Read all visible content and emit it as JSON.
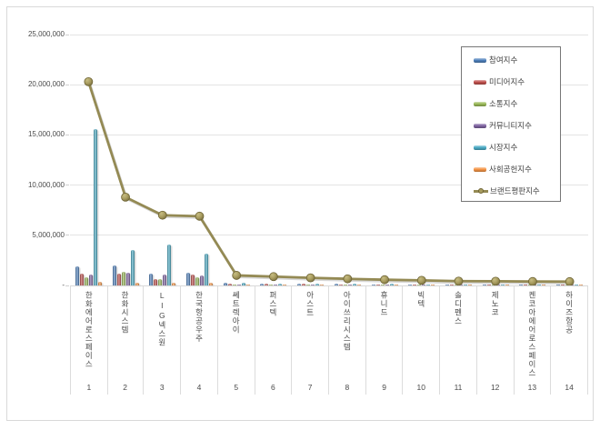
{
  "accent_colors": {
    "grid": "#e3e3e3",
    "frame_border": "#d9d9d9",
    "legend_border": "#777777",
    "text": "#4a4a4a"
  },
  "chart_data": {
    "type": "bar",
    "note_combo": "six 3D cylinder bar series plus one olive line series with circular markers",
    "title": "",
    "xlabel": "",
    "ylabel": "",
    "ylim": [
      0,
      25000000
    ],
    "y_step": 5000000,
    "grid": true,
    "legend_position": "top-right box",
    "y_ticks": [
      "25,000,000",
      "20,000,000",
      "15,000,000",
      "10,000,000",
      "5,000,000",
      "-"
    ],
    "categories": [
      "한화에어로스페이스",
      "한화시스템",
      "LIG넥스원",
      "한국항공우주",
      "쎄트렉아이",
      "퍼스텍",
      "아스트",
      "아이쓰리시스템",
      "휴니드",
      "빅텍",
      "솔디펜스",
      "제노코",
      "켄코아에어로스페이스",
      "하이즈항공"
    ],
    "category_numbers": [
      "1",
      "2",
      "3",
      "4",
      "5",
      "6",
      "7",
      "8",
      "9",
      "10",
      "11",
      "12",
      "13",
      "14"
    ],
    "series": [
      {
        "name": "참여지수",
        "type": "bar",
        "color": "#4F81BD",
        "values": [
          1900000,
          2000000,
          1150000,
          1300000,
          280000,
          200000,
          160000,
          180000,
          120000,
          110000,
          90000,
          100000,
          90000,
          90000
        ]
      },
      {
        "name": "미디어지수",
        "type": "bar",
        "color": "#C0504D",
        "values": [
          1200000,
          1200000,
          650000,
          1080000,
          160000,
          180000,
          160000,
          120000,
          130000,
          110000,
          90000,
          90000,
          80000,
          80000
        ]
      },
      {
        "name": "소통지수",
        "type": "bar",
        "color": "#9BBB59",
        "values": [
          820000,
          1380000,
          630000,
          810000,
          120000,
          130000,
          110000,
          90000,
          80000,
          70000,
          60000,
          70000,
          60000,
          60000
        ]
      },
      {
        "name": "커뮤니티지수",
        "type": "bar",
        "color": "#8064A2",
        "values": [
          1050000,
          1230000,
          1050000,
          1020000,
          130000,
          120000,
          100000,
          90000,
          70000,
          60000,
          50000,
          50000,
          50000,
          50000
        ]
      },
      {
        "name": "시장지수",
        "type": "bar",
        "color": "#4BACC6",
        "values": [
          15600000,
          3500000,
          4050000,
          3200000,
          280000,
          220000,
          200000,
          150000,
          140000,
          130000,
          110000,
          80000,
          80000,
          70000
        ]
      },
      {
        "name": "사회공헌지수",
        "type": "bar",
        "color": "#F79646",
        "values": [
          350000,
          270000,
          300000,
          270000,
          40000,
          30000,
          40000,
          30000,
          30000,
          30000,
          30000,
          30000,
          30000,
          30000
        ]
      },
      {
        "name": "브랜드평판지수",
        "type": "line",
        "color": "#948A54",
        "marker_fill": "#A89C5F",
        "marker_edge": "#6E6435",
        "values": [
          20300000,
          8800000,
          7000000,
          6900000,
          1000000,
          880000,
          760000,
          660000,
          570000,
          510000,
          430000,
          420000,
          390000,
          380000
        ]
      }
    ]
  }
}
